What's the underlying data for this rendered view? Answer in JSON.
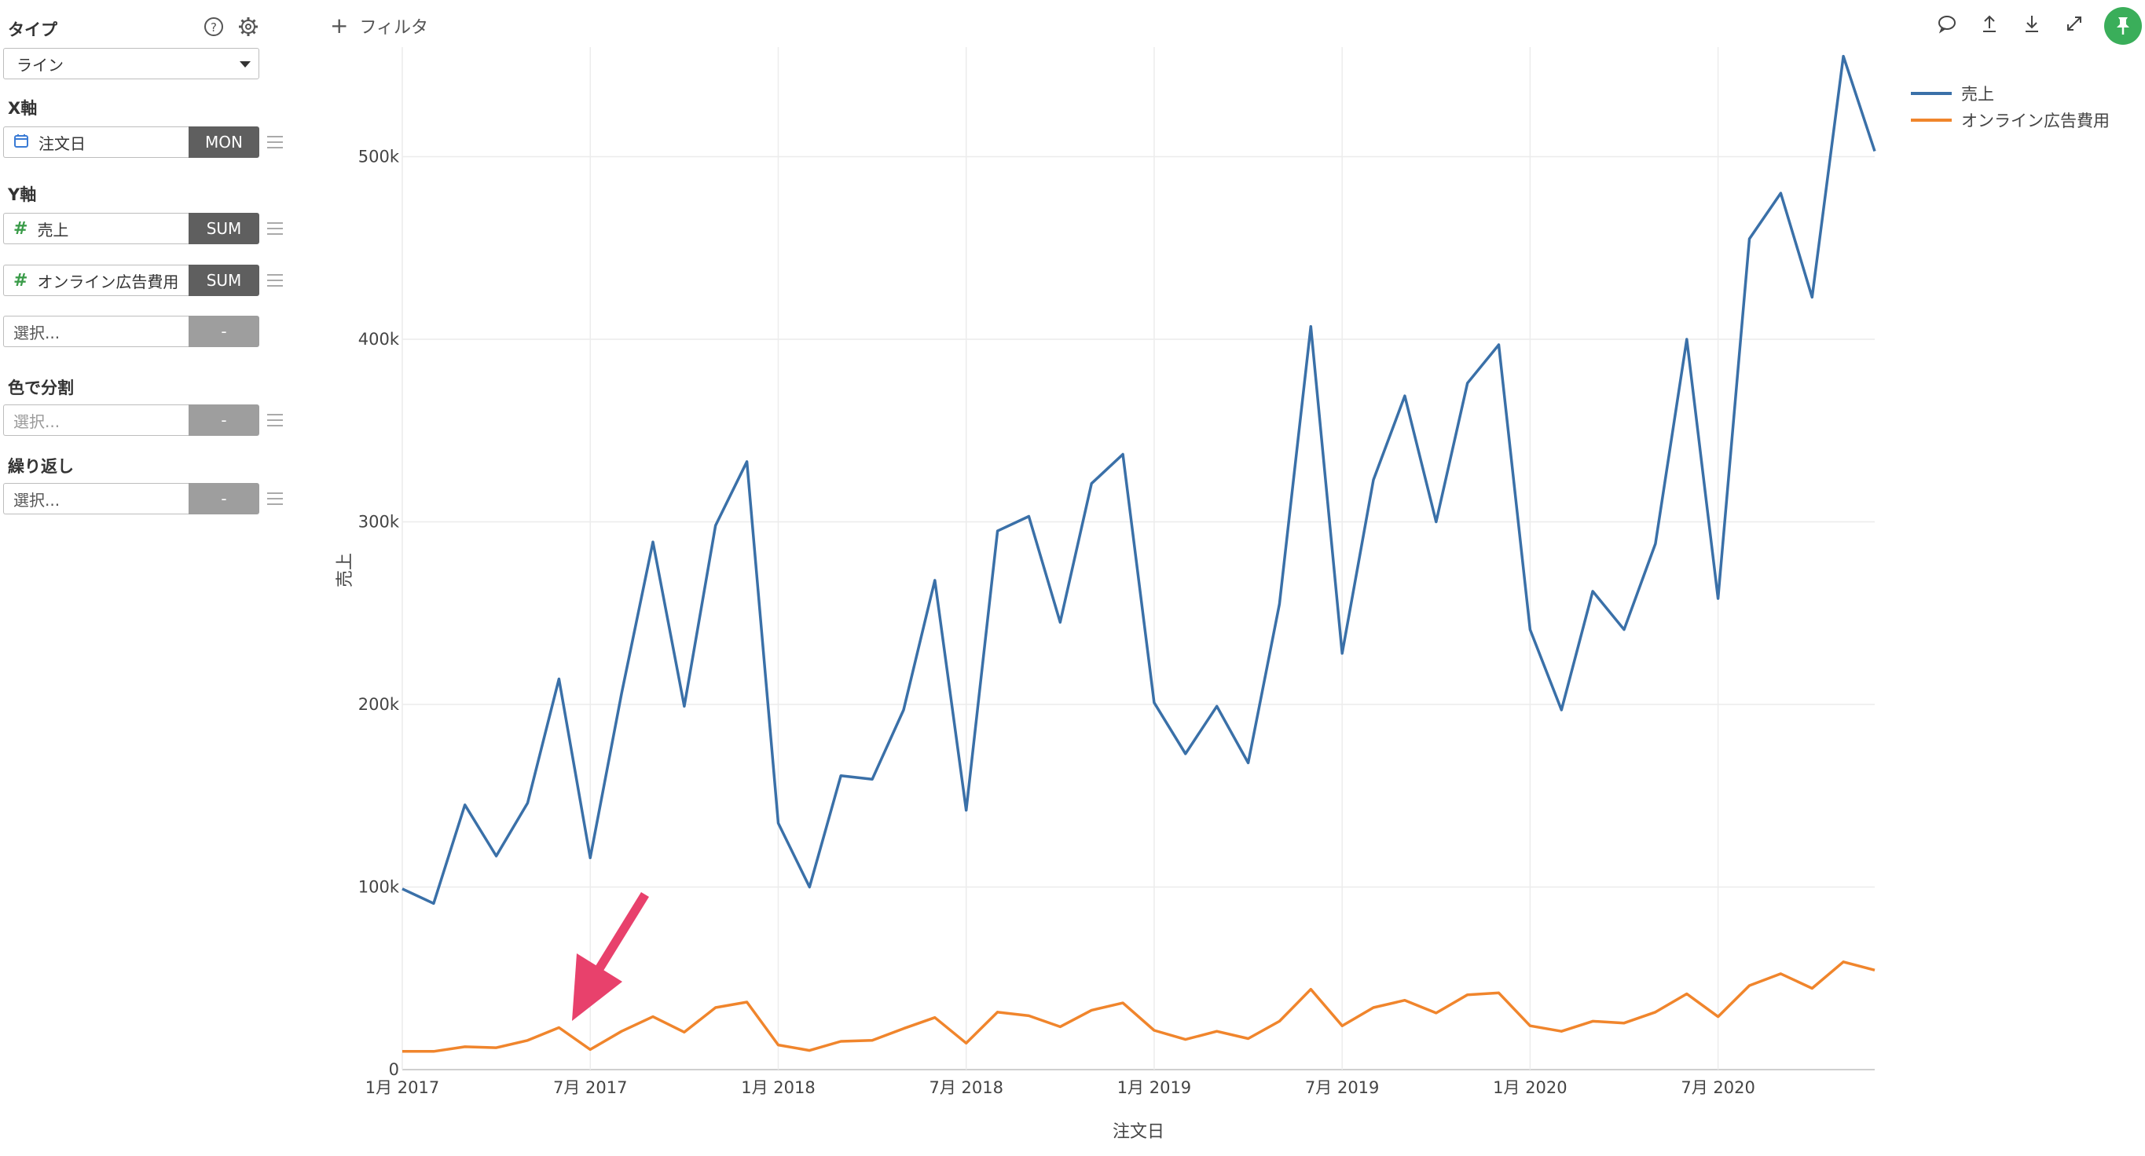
{
  "sidebar": {
    "type_label": "タイプ",
    "type_value": "ライン",
    "x_label": "X軸",
    "x_field": "注文日",
    "x_agg": "MON",
    "y_label": "Y軸",
    "y_fields": [
      {
        "name": "売上",
        "agg": "SUM"
      },
      {
        "name": "オンライン広告費用",
        "agg": "SUM"
      }
    ],
    "y_select": {
      "placeholder": "選択...",
      "agg": "-"
    },
    "color_label": "色で分割",
    "color_select": {
      "placeholder": "選択...",
      "agg": "-"
    },
    "repeat_label": "繰り返し",
    "repeat_select": {
      "placeholder": "選択...",
      "agg": "-"
    }
  },
  "toolbar": {
    "filter_label": "フィルタ",
    "icons": [
      "comment-icon",
      "upload-icon",
      "download-icon",
      "expand-icon",
      "pin-icon"
    ]
  },
  "colors": {
    "sales": "#3a70a8",
    "ad_cost": "#f0852c",
    "dark_button": "#5f5f5f",
    "pin_green": "#3aae5a",
    "arrow_pink": "#e8416c"
  },
  "chart_data": {
    "type": "line",
    "xlabel": "注文日",
    "ylabel": "売上",
    "ylim": [
      0,
      560000
    ],
    "yticks": [
      "0",
      "100k",
      "200k",
      "300k",
      "400k",
      "500k"
    ],
    "xticks": [
      "1月 2017",
      "7月 2017",
      "1月 2018",
      "7月 2018",
      "1月 2019",
      "7月 2019",
      "1月 2020",
      "7月 2020"
    ],
    "x": [
      "2017-01",
      "2017-02",
      "2017-03",
      "2017-04",
      "2017-05",
      "2017-06",
      "2017-07",
      "2017-08",
      "2017-09",
      "2017-10",
      "2017-11",
      "2017-12",
      "2018-01",
      "2018-02",
      "2018-03",
      "2018-04",
      "2018-05",
      "2018-06",
      "2018-07",
      "2018-08",
      "2018-09",
      "2018-10",
      "2018-11",
      "2018-12",
      "2019-01",
      "2019-02",
      "2019-03",
      "2019-04",
      "2019-05",
      "2019-06",
      "2019-07",
      "2019-08",
      "2019-09",
      "2019-10",
      "2019-11",
      "2019-12",
      "2020-01",
      "2020-02",
      "2020-03",
      "2020-04",
      "2020-05",
      "2020-06",
      "2020-07",
      "2020-08",
      "2020-09",
      "2020-10",
      "2020-11",
      "2020-12"
    ],
    "series": [
      {
        "name": "売上",
        "values": [
          99000,
          91000,
          145000,
          117000,
          146000,
          214000,
          116000,
          206000,
          289000,
          199000,
          298000,
          333000,
          135000,
          100000,
          161000,
          159000,
          197000,
          268000,
          142000,
          295000,
          303000,
          245000,
          321000,
          337000,
          201000,
          173000,
          199000,
          168000,
          255000,
          407000,
          228000,
          323000,
          369000,
          300000,
          376000,
          397000,
          241000,
          197000,
          262000,
          241000,
          288000,
          400000,
          258000,
          455000,
          480000,
          423000,
          555000,
          503000
        ]
      },
      {
        "name": "オンライン広告費用",
        "values": [
          10000,
          10000,
          12500,
          12000,
          16000,
          23000,
          11000,
          21000,
          29000,
          20500,
          34000,
          37000,
          13500,
          10500,
          15500,
          16000,
          22500,
          28500,
          14500,
          31500,
          29500,
          23500,
          32500,
          36500,
          21500,
          16500,
          21000,
          17000,
          26500,
          44000,
          24000,
          34000,
          38000,
          31000,
          41000,
          42000,
          24000,
          21000,
          26500,
          25500,
          31500,
          41500,
          29000,
          46000,
          52500,
          44500,
          59000,
          54500
        ]
      }
    ]
  }
}
